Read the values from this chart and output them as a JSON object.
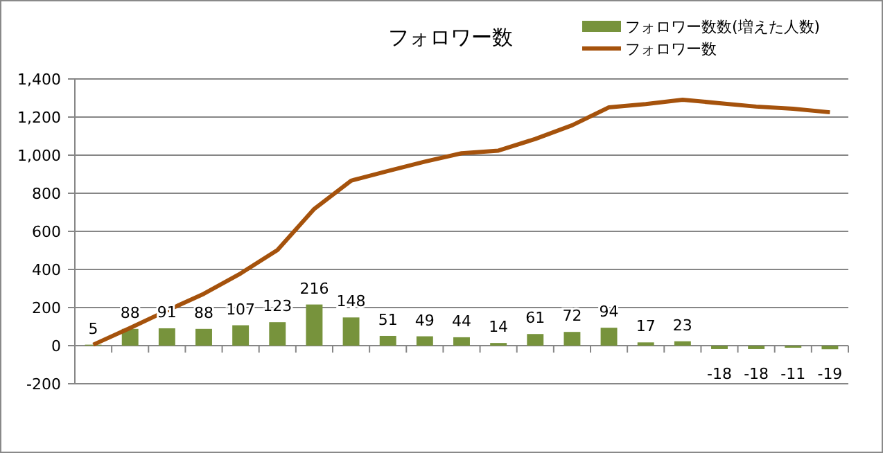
{
  "chart_data": {
    "type": "bar",
    "title": "フォロワー数",
    "categories": [
      null,
      null,
      null,
      null,
      null,
      null,
      null,
      null,
      null,
      null,
      null,
      null,
      null,
      null,
      null,
      null,
      null,
      null,
      null,
      null,
      null
    ],
    "series": [
      {
        "name": "フォロワー数数(増えた人数)",
        "color": "#77933c",
        "values": [
          5,
          88,
          91,
          88,
          107,
          123,
          216,
          148,
          51,
          49,
          44,
          14,
          61,
          72,
          94,
          17,
          23,
          -18,
          -18,
          -11,
          -19
        ],
        "value_labels": [
          "5",
          "88",
          "91",
          "88",
          "107",
          "123",
          "216",
          "148",
          "51",
          "49",
          "44",
          "14",
          "61",
          "72",
          "94",
          "17",
          "23",
          "-18",
          "-18",
          "-11",
          "-19"
        ]
      },
      {
        "name": "フォロワー数",
        "type": "line",
        "color": "#a5520c",
        "values": [
          5,
          93,
          184,
          272,
          379,
          502,
          718,
          866,
          917,
          966,
          1010,
          1024,
          1085,
          1157,
          1251,
          1268,
          1291,
          1273,
          1255,
          1244,
          1225
        ]
      }
    ],
    "ylim": [
      -200,
      1400
    ],
    "yticks": [
      {
        "value": -200,
        "label": "-200"
      },
      {
        "value": 0,
        "label": "0"
      },
      {
        "value": 200,
        "label": "200"
      },
      {
        "value": 400,
        "label": "400"
      },
      {
        "value": 600,
        "label": "600"
      },
      {
        "value": 800,
        "label": "800"
      },
      {
        "value": 1000,
        "label": "1,000"
      },
      {
        "value": 1200,
        "label": "1,200"
      },
      {
        "value": 1400,
        "label": "1,400"
      }
    ],
    "grid": "y",
    "legend": "top right",
    "marker": "none",
    "line_style": "solid"
  }
}
